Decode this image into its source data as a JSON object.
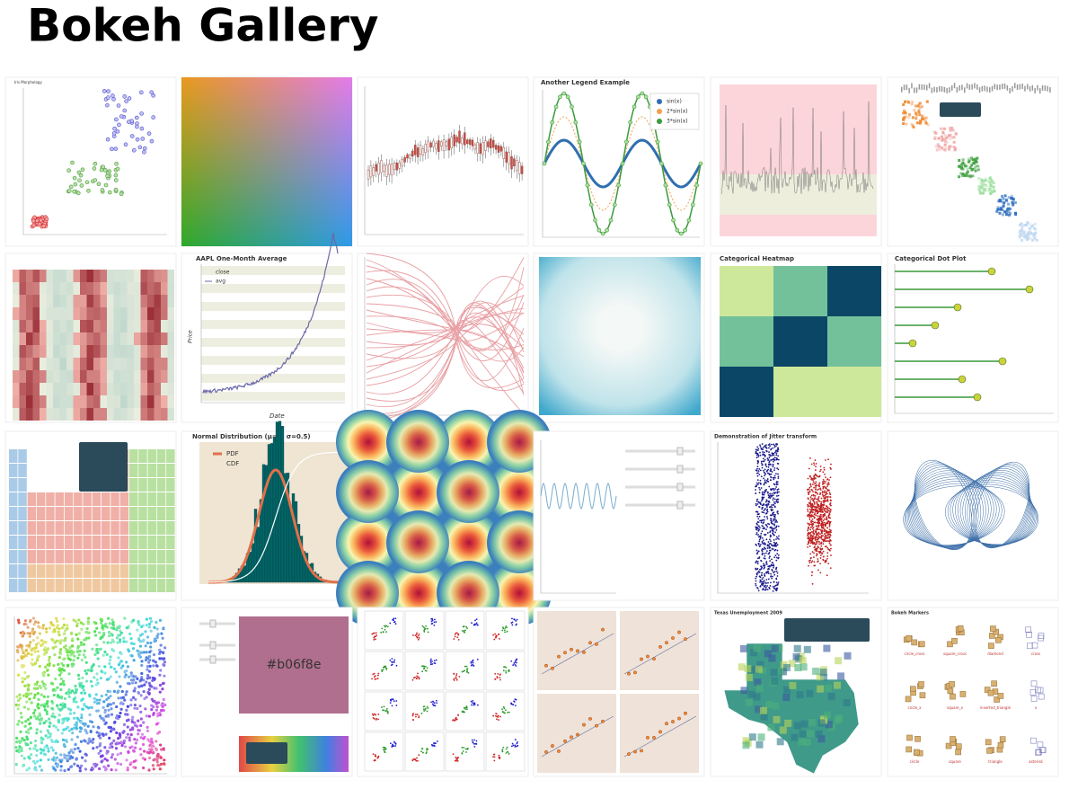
{
  "header": {
    "title": "Bokeh Gallery"
  },
  "tiles": {
    "iris": {
      "title": "Iris Morphology"
    },
    "legend_example": {
      "title": "Another Legend Example",
      "legend": [
        "sin(x)",
        "2*sin(x)",
        "3*sin(x)"
      ]
    },
    "aapl": {
      "title": "AAPL One-Month Average",
      "legend": [
        "close",
        "avg"
      ],
      "xlabel": "Date",
      "ylabel": "Price"
    },
    "cat_heatmap": {
      "title": "Categorical Heatmap"
    },
    "dot_plot": {
      "title": "Categorical Dot Plot"
    },
    "normal": {
      "title": "Normal Distribution (μ=0, σ=0.5)",
      "legend": [
        "PDF",
        "CDF"
      ]
    },
    "jitter": {
      "title": "Demonstration of Jitter transform"
    },
    "color_box": {
      "label": "#b06f8e"
    },
    "texas": {
      "title": "Texas Unemployment 2009"
    },
    "markers": {
      "title": "Bokeh Markers",
      "names": [
        "circle_cross",
        "square_cross",
        "diamond",
        "cross",
        "circle_x",
        "square_x",
        "inverted_triangle",
        "x",
        "circle",
        "square",
        "triangle",
        "asterisk"
      ]
    }
  }
}
